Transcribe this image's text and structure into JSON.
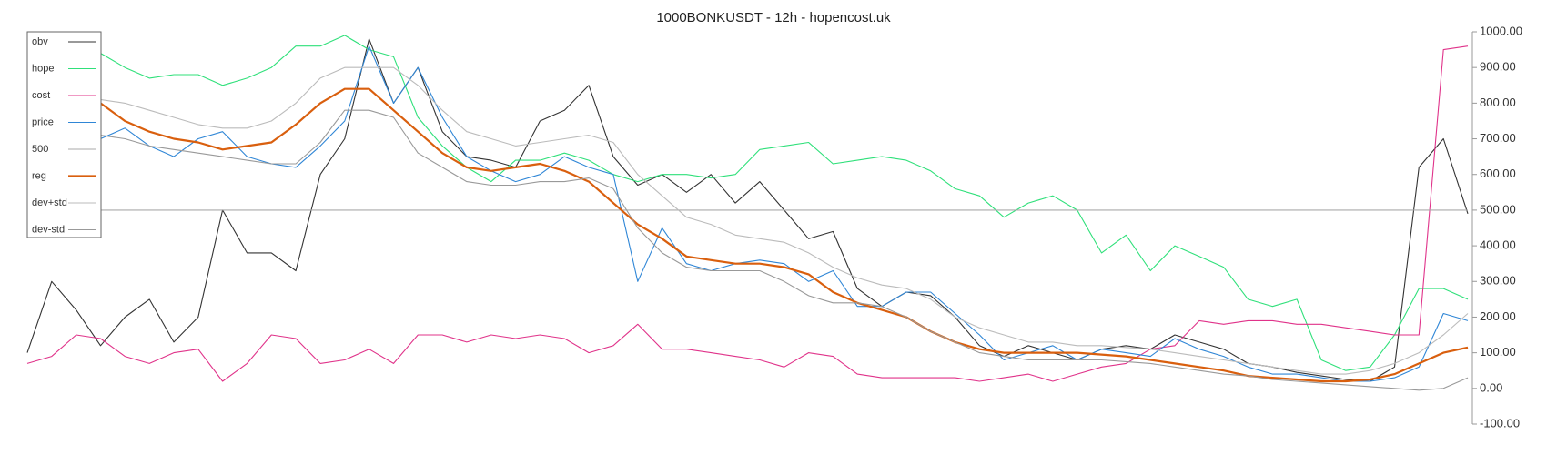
{
  "chart_data": {
    "type": "line",
    "title": "1000BONKUSDT - 12h - hopencost.uk",
    "ylim": [
      -100,
      1000
    ],
    "yticks": [
      {
        "value": 1000,
        "label": "1000.00"
      },
      {
        "value": 900,
        "label": "900.00"
      },
      {
        "value": 800,
        "label": "800.00"
      },
      {
        "value": 700,
        "label": "700.00"
      },
      {
        "value": 600,
        "label": "600.00"
      },
      {
        "value": 500,
        "label": "500.00"
      },
      {
        "value": 400,
        "label": "400.00"
      },
      {
        "value": 300,
        "label": "300.00"
      },
      {
        "value": 200,
        "label": "200.00"
      },
      {
        "value": 100,
        "label": "100.00"
      },
      {
        "value": 0,
        "label": "0.00"
      },
      {
        "value": -100,
        "label": "-100.00"
      }
    ],
    "legend": "top-left",
    "series": [
      {
        "name": "obv",
        "color": "#333333",
        "values": [
          100,
          300,
          220,
          120,
          200,
          250,
          130,
          200,
          500,
          380,
          380,
          330,
          600,
          700,
          980,
          800,
          900,
          720,
          650,
          640,
          620,
          750,
          780,
          850,
          650,
          570,
          600,
          550,
          600,
          520,
          580,
          500,
          420,
          440,
          280,
          230,
          270,
          260,
          200,
          120,
          90,
          120,
          100,
          80,
          110,
          120,
          110,
          150,
          130,
          110,
          70,
          60,
          45,
          35,
          25,
          20,
          60,
          620,
          700,
          490
        ]
      },
      {
        "name": "hope",
        "color": "#2fe07a",
        "values": [
          null,
          null,
          null,
          940,
          900,
          870,
          880,
          880,
          850,
          870,
          900,
          960,
          960,
          990,
          950,
          930,
          760,
          680,
          620,
          580,
          640,
          640,
          660,
          640,
          600,
          580,
          600,
          600,
          590,
          600,
          670,
          680,
          690,
          630,
          640,
          650,
          640,
          610,
          560,
          540,
          480,
          520,
          540,
          500,
          380,
          430,
          330,
          400,
          370,
          340,
          250,
          230,
          250,
          80,
          50,
          60,
          150,
          280,
          280,
          250
        ]
      },
      {
        "name": "cost",
        "color": "#e0338a",
        "values": [
          70,
          90,
          150,
          140,
          90,
          70,
          100,
          110,
          20,
          70,
          150,
          140,
          70,
          80,
          110,
          70,
          150,
          150,
          130,
          150,
          140,
          150,
          140,
          100,
          120,
          180,
          110,
          110,
          100,
          90,
          80,
          60,
          100,
          90,
          40,
          30,
          30,
          30,
          30,
          20,
          30,
          40,
          20,
          40,
          60,
          70,
          110,
          120,
          190,
          180,
          190,
          190,
          180,
          180,
          170,
          160,
          150,
          150,
          950,
          960
        ]
      },
      {
        "name": "price",
        "color": "#2f86d6",
        "values": [
          null,
          null,
          null,
          700,
          730,
          680,
          650,
          700,
          720,
          650,
          630,
          620,
          680,
          750,
          960,
          800,
          900,
          760,
          650,
          610,
          580,
          600,
          650,
          620,
          600,
          300,
          450,
          350,
          330,
          350,
          360,
          350,
          300,
          330,
          230,
          230,
          270,
          270,
          210,
          150,
          80,
          100,
          120,
          80,
          110,
          100,
          90,
          140,
          110,
          90,
          60,
          40,
          40,
          30,
          20,
          20,
          30,
          60,
          210,
          190
        ]
      },
      {
        "name": "500",
        "color": "#aaaaaa",
        "values": [
          500,
          500,
          500,
          500,
          500,
          500,
          500,
          500,
          500,
          500,
          500,
          500,
          500,
          500,
          500,
          500,
          500,
          500,
          500,
          500,
          500,
          500,
          500,
          500,
          500,
          500,
          500,
          500,
          500,
          500,
          500,
          500,
          500,
          500,
          500,
          500,
          500,
          500,
          500,
          500,
          500,
          500,
          500,
          500,
          500,
          500,
          500,
          500,
          500,
          500,
          500,
          500,
          500,
          500,
          500,
          500,
          500,
          500,
          500,
          500
        ]
      },
      {
        "name": "reg",
        "color": "#d95f0e",
        "values": [
          null,
          null,
          null,
          800,
          750,
          720,
          700,
          690,
          670,
          680,
          690,
          740,
          800,
          840,
          840,
          780,
          720,
          660,
          620,
          610,
          620,
          630,
          610,
          580,
          520,
          460,
          420,
          370,
          360,
          350,
          350,
          340,
          320,
          270,
          240,
          220,
          200,
          160,
          130,
          110,
          100,
          100,
          100,
          100,
          95,
          90,
          80,
          70,
          60,
          50,
          35,
          30,
          25,
          20,
          20,
          25,
          40,
          70,
          100,
          115
        ]
      },
      {
        "name": "dev+std",
        "color": "#bbbbbb",
        "values": [
          null,
          null,
          null,
          810,
          800,
          780,
          760,
          740,
          730,
          730,
          750,
          800,
          870,
          900,
          900,
          900,
          850,
          780,
          720,
          700,
          680,
          690,
          700,
          710,
          690,
          600,
          540,
          480,
          460,
          430,
          420,
          410,
          380,
          340,
          310,
          290,
          280,
          250,
          200,
          170,
          150,
          130,
          130,
          120,
          120,
          115,
          110,
          100,
          90,
          80,
          70,
          60,
          50,
          40,
          40,
          50,
          70,
          100,
          150,
          210
        ]
      },
      {
        "name": "dev-std",
        "color": "#999999",
        "values": [
          null,
          null,
          null,
          710,
          700,
          680,
          670,
          660,
          650,
          640,
          630,
          630,
          690,
          780,
          780,
          760,
          660,
          620,
          580,
          570,
          570,
          580,
          580,
          590,
          560,
          450,
          380,
          340,
          330,
          330,
          330,
          300,
          260,
          240,
          240,
          230,
          200,
          160,
          130,
          100,
          90,
          80,
          80,
          80,
          80,
          75,
          70,
          60,
          50,
          40,
          35,
          25,
          20,
          15,
          10,
          5,
          0,
          -5,
          0,
          30
        ]
      }
    ]
  }
}
